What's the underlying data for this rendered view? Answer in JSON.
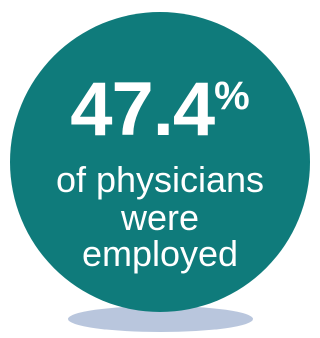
{
  "badge": {
    "value": "47.4",
    "unit": "%",
    "line1": "of physicians",
    "line2": "were",
    "line3": "employed",
    "colors": {
      "circle": "#0f7b7b",
      "shadow": "#b9c6dd",
      "text": "#ffffff"
    }
  }
}
